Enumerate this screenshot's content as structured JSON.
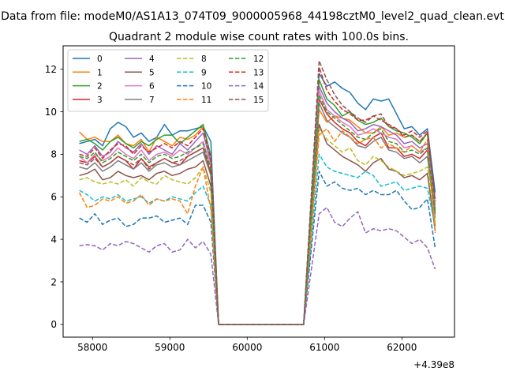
{
  "figure": {
    "suptitle": "Data from file: modeM0/AS1A13_074T09_9000005968_44198cztM0_level2_quad_clean.evt",
    "title": "Quadrant 2 module wise count rates with 100.0s bins.",
    "offset_text": "+4.39e8"
  },
  "chart_data": {
    "type": "line",
    "title": "Quadrant 2 module wise count rates with 100.0s bins.",
    "xlabel": "",
    "ylabel": "",
    "x_offset": 439000000,
    "xlim": [
      57620,
      62680
    ],
    "ylim": [
      -0.6,
      13.1
    ],
    "xticks": [
      58000,
      59000,
      60000,
      61000,
      62000
    ],
    "yticks": [
      0,
      2,
      4,
      6,
      8,
      10,
      12
    ],
    "grid": false,
    "legend_position": "upper left",
    "legend_columns": 4,
    "x": [
      57830,
      57930,
      58030,
      58130,
      58230,
      58330,
      58430,
      58530,
      58630,
      58730,
      58830,
      58930,
      59030,
      59130,
      59230,
      59330,
      59430,
      59530,
      59630,
      59730,
      59830,
      59930,
      60030,
      60130,
      60230,
      60330,
      60430,
      60530,
      60630,
      60730,
      60930,
      61030,
      61130,
      61230,
      61330,
      61430,
      61530,
      61630,
      61730,
      61830,
      61930,
      62030,
      62130,
      62230,
      62330,
      62430
    ],
    "series": [
      {
        "name": "0",
        "color": "#1f77b4",
        "dash": "solid",
        "values": [
          8.5,
          8.6,
          8.7,
          8.4,
          9.2,
          9.5,
          9.3,
          8.8,
          9.0,
          8.6,
          8.8,
          9.4,
          8.9,
          9.1,
          9.1,
          9.2,
          9.3,
          8.6,
          0,
          0,
          0,
          0,
          0,
          0,
          0,
          0,
          0,
          0,
          0,
          0,
          11.8,
          11.2,
          11.4,
          11.1,
          10.9,
          10.4,
          10.1,
          10.6,
          10.5,
          10.6,
          9.9,
          9.2,
          9.3,
          8.9,
          9.2,
          6.2
        ]
      },
      {
        "name": "1",
        "color": "#ff7f0e",
        "dash": "solid",
        "values": [
          9.05,
          8.7,
          8.8,
          8.6,
          8.6,
          8.9,
          8.5,
          8.4,
          8.7,
          8.1,
          8.8,
          8.6,
          8.4,
          8.8,
          8.7,
          8.9,
          9.3,
          7.9,
          0,
          0,
          0,
          0,
          0,
          0,
          0,
          0,
          0,
          0,
          0,
          0,
          10.1,
          9.5,
          9.8,
          9.7,
          9.6,
          9.3,
          9.0,
          9.0,
          9.3,
          8.9,
          9.0,
          8.8,
          8.9,
          8.6,
          9.0,
          4.6
        ]
      },
      {
        "name": "2",
        "color": "#2ca02c",
        "dash": "solid",
        "values": [
          8.6,
          8.7,
          8.5,
          8.2,
          8.6,
          8.8,
          8.5,
          8.3,
          8.6,
          8.4,
          8.7,
          8.9,
          8.9,
          8.5,
          8.8,
          9.1,
          9.4,
          7.9,
          0,
          0,
          0,
          0,
          0,
          0,
          0,
          0,
          0,
          0,
          0,
          0,
          11.5,
          10.6,
          10.3,
          9.8,
          10.0,
          9.6,
          9.4,
          9.5,
          9.7,
          9.3,
          9.1,
          9.0,
          8.8,
          8.5,
          9.0,
          5.6
        ]
      },
      {
        "name": "3",
        "color": "#d62728",
        "dash": "solid",
        "values": [
          7.7,
          7.6,
          7.9,
          7.4,
          7.6,
          7.9,
          7.7,
          7.3,
          7.8,
          7.4,
          7.6,
          7.8,
          7.6,
          7.5,
          7.9,
          8.1,
          8.3,
          7.1,
          0,
          0,
          0,
          0,
          0,
          0,
          0,
          0,
          0,
          0,
          0,
          0,
          10.6,
          9.9,
          9.5,
          9.2,
          9.0,
          8.6,
          8.4,
          8.8,
          9.0,
          8.3,
          8.3,
          7.9,
          8.0,
          7.8,
          8.2,
          5.2
        ]
      },
      {
        "name": "4",
        "color": "#9467bd",
        "dash": "solid",
        "values": [
          8.2,
          8.0,
          8.4,
          7.9,
          8.1,
          8.6,
          8.3,
          8.1,
          8.5,
          8.0,
          8.4,
          8.2,
          8.0,
          8.5,
          8.2,
          8.6,
          9.0,
          7.6,
          0,
          0,
          0,
          0,
          0,
          0,
          0,
          0,
          0,
          0,
          0,
          0,
          11.2,
          10.4,
          10.0,
          9.7,
          9.5,
          9.1,
          9.2,
          9.4,
          9.3,
          9.1,
          8.9,
          8.5,
          8.6,
          8.3,
          8.5,
          5.4
        ]
      },
      {
        "name": "5",
        "color": "#8c564b",
        "dash": "solid",
        "values": [
          7.0,
          7.1,
          7.3,
          6.8,
          6.9,
          7.2,
          7.0,
          6.9,
          7.0,
          6.8,
          7.1,
          7.2,
          7.0,
          7.1,
          7.3,
          7.4,
          7.7,
          6.5,
          0,
          0,
          0,
          0,
          0,
          0,
          0,
          0,
          0,
          0,
          0,
          0,
          9.4,
          8.5,
          8.2,
          7.9,
          7.7,
          7.5,
          7.2,
          7.6,
          7.8,
          7.3,
          7.2,
          6.9,
          7.0,
          6.8,
          7.1,
          4.4
        ]
      },
      {
        "name": "6",
        "color": "#e377c2",
        "dash": "solid",
        "values": [
          7.9,
          7.6,
          8.0,
          7.7,
          7.9,
          8.3,
          8.0,
          7.8,
          8.2,
          7.7,
          8.0,
          8.1,
          7.9,
          8.2,
          8.0,
          8.3,
          8.6,
          7.4,
          0,
          0,
          0,
          0,
          0,
          0,
          0,
          0,
          0,
          0,
          0,
          0,
          11.0,
          10.1,
          9.8,
          9.5,
          9.3,
          8.9,
          9.0,
          9.2,
          9.0,
          8.8,
          8.7,
          8.3,
          8.4,
          8.1,
          8.3,
          5.5
        ]
      },
      {
        "name": "7",
        "color": "#7f7f7f",
        "dash": "solid",
        "values": [
          7.4,
          7.3,
          7.6,
          7.2,
          7.4,
          7.7,
          7.5,
          7.3,
          7.6,
          7.2,
          7.5,
          7.6,
          7.4,
          7.5,
          7.7,
          7.9,
          8.1,
          7.0,
          0,
          0,
          0,
          0,
          0,
          0,
          0,
          0,
          0,
          0,
          0,
          0,
          10.4,
          9.6,
          9.3,
          9.0,
          8.8,
          8.4,
          8.3,
          8.6,
          8.8,
          8.2,
          8.1,
          7.8,
          7.9,
          7.6,
          7.9,
          5.0
        ]
      },
      {
        "name": "8",
        "color": "#bcbd22",
        "dash": "dashed",
        "values": [
          6.8,
          6.9,
          6.7,
          6.6,
          6.7,
          6.6,
          6.8,
          6.5,
          6.9,
          6.7,
          6.6,
          7.0,
          6.8,
          6.7,
          6.6,
          6.9,
          7.4,
          6.2,
          0,
          0,
          0,
          0,
          0,
          0,
          0,
          0,
          0,
          0,
          0,
          0,
          9.2,
          8.7,
          8.4,
          8.1,
          8.3,
          7.7,
          7.5,
          7.9,
          7.7,
          7.4,
          7.2,
          7.0,
          7.1,
          7.2,
          7.4,
          4.8
        ]
      },
      {
        "name": "9",
        "color": "#17becf",
        "dash": "dashed",
        "values": [
          6.3,
          6.1,
          5.8,
          6.0,
          5.9,
          6.1,
          5.8,
          5.9,
          6.0,
          5.7,
          5.9,
          5.8,
          6.0,
          5.9,
          5.8,
          6.2,
          6.5,
          5.6,
          0,
          0,
          0,
          0,
          0,
          0,
          0,
          0,
          0,
          0,
          0,
          0,
          8.0,
          7.4,
          7.2,
          7.1,
          7.0,
          6.9,
          7.2,
          7.0,
          6.5,
          6.6,
          6.7,
          6.3,
          6.4,
          6.5,
          6.4,
          4.6
        ]
      },
      {
        "name": "10",
        "color": "#1f77b4",
        "dash": "dashed",
        "values": [
          5.0,
          4.8,
          5.2,
          4.7,
          4.9,
          5.0,
          4.6,
          4.7,
          5.0,
          5.0,
          5.1,
          4.8,
          4.9,
          5.0,
          4.7,
          5.6,
          5.6,
          4.8,
          0,
          0,
          0,
          0,
          0,
          0,
          0,
          0,
          0,
          0,
          0,
          0,
          7.2,
          6.5,
          6.7,
          6.4,
          6.3,
          6.4,
          6.1,
          6.3,
          6.1,
          6.1,
          6.3,
          5.8,
          5.4,
          5.5,
          5.9,
          3.6
        ]
      },
      {
        "name": "11",
        "color": "#ff7f0e",
        "dash": "dashed",
        "values": [
          6.2,
          5.5,
          5.6,
          5.9,
          5.8,
          6.0,
          5.7,
          5.8,
          6.1,
          5.6,
          5.9,
          5.8,
          5.9,
          5.8,
          5.2,
          6.5,
          7.4,
          5.4,
          0,
          0,
          0,
          0,
          0,
          0,
          0,
          0,
          0,
          0,
          0,
          0,
          8.9,
          9.2,
          8.6,
          9.1,
          8.8,
          8.5,
          8.7,
          8.8,
          8.3,
          8.5,
          8.3,
          8.1,
          8.4,
          8.1,
          8.7,
          4.3
        ]
      },
      {
        "name": "12",
        "color": "#2ca02c",
        "dash": "dashed",
        "values": [
          7.9,
          7.8,
          8.1,
          7.6,
          7.8,
          8.1,
          7.9,
          7.7,
          8.0,
          7.6,
          7.9,
          8.0,
          7.8,
          7.9,
          8.1,
          8.3,
          8.5,
          7.3,
          0,
          0,
          0,
          0,
          0,
          0,
          0,
          0,
          0,
          0,
          0,
          0,
          10.8,
          10.0,
          9.7,
          9.4,
          9.1,
          8.8,
          8.7,
          9.0,
          9.2,
          8.6,
          8.5,
          8.1,
          8.2,
          8.0,
          8.3,
          5.3
        ]
      },
      {
        "name": "13",
        "color": "#d62728",
        "dash": "dashed",
        "values": [
          8.0,
          7.9,
          8.3,
          7.8,
          8.2,
          8.5,
          8.4,
          8.0,
          8.4,
          8.1,
          8.3,
          8.5,
          8.3,
          8.6,
          8.4,
          8.8,
          9.2,
          7.8,
          0,
          0,
          0,
          0,
          0,
          0,
          0,
          0,
          0,
          0,
          0,
          0,
          12.1,
          11.0,
          10.5,
          10.1,
          9.9,
          9.6,
          9.6,
          9.8,
          9.6,
          9.4,
          9.2,
          8.9,
          9.1,
          8.8,
          9.1,
          5.8
        ]
      },
      {
        "name": "14",
        "color": "#9467bd",
        "dash": "dashed",
        "values": [
          3.7,
          3.75,
          3.7,
          3.5,
          3.8,
          3.7,
          3.9,
          3.8,
          3.6,
          3.4,
          3.7,
          3.8,
          3.4,
          3.5,
          4.0,
          3.6,
          3.9,
          3.3,
          0,
          0,
          0,
          0,
          0,
          0,
          0,
          0,
          0,
          0,
          0,
          0,
          5.2,
          5.5,
          4.8,
          4.6,
          5.0,
          5.3,
          4.3,
          4.5,
          4.4,
          4.5,
          4.4,
          4.1,
          3.8,
          4.0,
          3.6,
          2.6
        ]
      },
      {
        "name": "15",
        "color": "#8c564b",
        "dash": "dashed",
        "values": [
          7.6,
          7.5,
          7.8,
          7.4,
          7.6,
          7.9,
          7.7,
          7.5,
          7.8,
          7.3,
          7.6,
          7.8,
          7.6,
          7.7,
          7.9,
          8.1,
          8.3,
          7.1,
          0,
          0,
          0,
          0,
          0,
          0,
          0,
          0,
          0,
          0,
          0,
          0,
          12.4,
          11.5,
          10.8,
          10.3,
          10.0,
          9.7,
          9.5,
          9.8,
          9.9,
          9.3,
          9.2,
          8.8,
          8.9,
          8.6,
          9.0,
          5.9
        ]
      }
    ]
  }
}
